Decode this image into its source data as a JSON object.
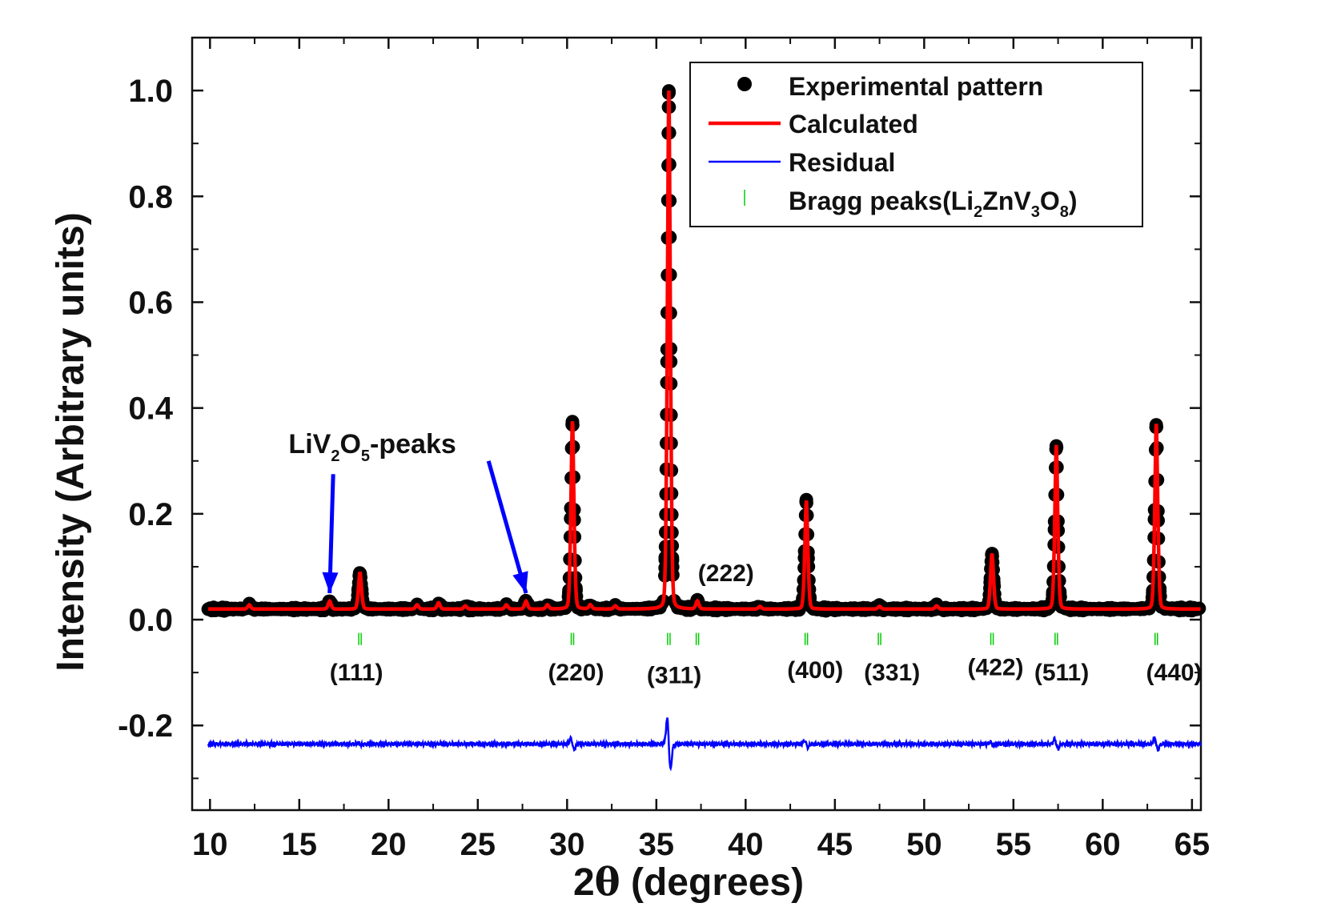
{
  "chart_data": {
    "type": "line",
    "xlabel_prefix": "2",
    "xlabel_theta": "θ",
    "xlabel_suffix": " (degrees)",
    "ylabel": "Intensity (Arbitrary units)",
    "xlim": [
      9,
      65.5
    ],
    "ylim": [
      -0.36,
      1.1
    ],
    "x_ticks": [
      10,
      15,
      20,
      25,
      30,
      35,
      40,
      45,
      50,
      55,
      60,
      65
    ],
    "y_ticks": [
      -0.2,
      0.0,
      0.2,
      0.4,
      0.6,
      0.8,
      1.0
    ],
    "y_tick_labels": [
      "-0.2",
      "0.0",
      "0.2",
      "0.4",
      "0.6",
      "0.8",
      "1.0"
    ],
    "baseline": 0.02,
    "residual_offset": -0.235,
    "series": [
      {
        "name": "Experimental pattern",
        "style": "markers",
        "color": "#000000"
      },
      {
        "name": "Calculated",
        "style": "line",
        "color": "#ff0000"
      },
      {
        "name": "Residual",
        "style": "line",
        "color": "#0000ff"
      },
      {
        "name_parts": [
          "Bragg peaks(Li",
          "2",
          "ZnV",
          "3",
          "O",
          "8",
          ")"
        ],
        "style": "ticks",
        "color": "#00cc00"
      }
    ],
    "peaks": [
      {
        "x": 18.4,
        "intensity": 0.09,
        "hkl": "(111)"
      },
      {
        "x": 30.3,
        "intensity": 0.375,
        "hkl": "(220)"
      },
      {
        "x": 35.7,
        "intensity": 1.0,
        "hkl": "(311)"
      },
      {
        "x": 37.3,
        "intensity": 0.035,
        "hkl": "(222)"
      },
      {
        "x": 43.4,
        "intensity": 0.225,
        "hkl": "(400)"
      },
      {
        "x": 47.5,
        "intensity": 0.025,
        "hkl": "(331)"
      },
      {
        "x": 53.8,
        "intensity": 0.125,
        "hkl": "(422)"
      },
      {
        "x": 57.4,
        "intensity": 0.33,
        "hkl": "(511)"
      },
      {
        "x": 63.0,
        "intensity": 0.37,
        "hkl": "(440)"
      }
    ],
    "impurity_peaks": [
      {
        "x": 16.7,
        "intensity": 0.035
      },
      {
        "x": 27.7,
        "intensity": 0.035
      }
    ],
    "minor_peaks": [
      {
        "x": 12.2,
        "intensity": 0.028
      },
      {
        "x": 21.6,
        "intensity": 0.028
      },
      {
        "x": 22.8,
        "intensity": 0.032
      },
      {
        "x": 24.3,
        "intensity": 0.026
      },
      {
        "x": 26.6,
        "intensity": 0.028
      },
      {
        "x": 28.9,
        "intensity": 0.028
      },
      {
        "x": 31.3,
        "intensity": 0.028
      },
      {
        "x": 32.7,
        "intensity": 0.026
      },
      {
        "x": 40.8,
        "intensity": 0.025
      },
      {
        "x": 50.7,
        "intensity": 0.026
      }
    ],
    "bragg_positions": [
      18.4,
      30.3,
      35.7,
      37.3,
      43.4,
      47.5,
      53.8,
      57.4,
      63.0
    ],
    "annotation": {
      "parts": [
        "LiV",
        "2",
        "O",
        "5",
        "-peaks"
      ],
      "arrow_targets": [
        16.7,
        27.7
      ]
    }
  }
}
